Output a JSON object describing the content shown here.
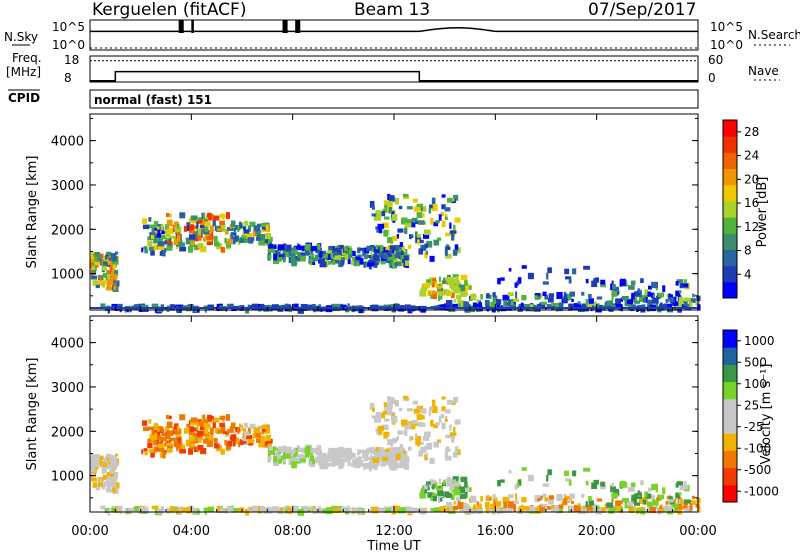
{
  "header": {
    "title": "Kerguelen (fitACF)",
    "beam": "Beam 13",
    "date": "07/Sep/2017"
  },
  "panels": {
    "nsky": {
      "label": "N.Sky",
      "ticks_left": [
        "10^5",
        "10^0"
      ],
      "ticks_right": [
        "10^5",
        "10^0"
      ],
      "right_label": "N.Search"
    },
    "freq": {
      "label_line1": "Freq.",
      "label_line2": "[MHz]",
      "ticks_left": [
        "18",
        "8"
      ],
      "ticks_right": [
        "60",
        "0"
      ],
      "right_label": "Nave"
    },
    "cpid": {
      "label": "CPID",
      "text": "normal (fast) 151"
    }
  },
  "colors": {
    "power": [
      "#0000ff",
      "#1e3cb4",
      "#2864a0",
      "#3c8c6e",
      "#50b43c",
      "#aad228",
      "#f0c800",
      "#f09600",
      "#f06400",
      "#f03200",
      "#ff0000"
    ],
    "velocity": [
      "#ff0000",
      "#f03c00",
      "#f07800",
      "#f0b400",
      "#c8c8c8",
      "#c8c8c8",
      "#78d228",
      "#3c9646",
      "#1e64a0",
      "#0000ff"
    ]
  },
  "chart_data": [
    {
      "type": "heatmap",
      "name": "power",
      "ylabel": "Slant Range [km]",
      "y_ticks": [
        "4000",
        "3000",
        "2000",
        "1000"
      ],
      "y_values": [
        4000,
        3000,
        2000,
        1000
      ],
      "ylim": [
        180,
        4600
      ],
      "xlim_hours": [
        0,
        24
      ],
      "colorbar_label": "Power [dB]",
      "colorbar_ticks": [
        "28",
        "24",
        "20",
        "16",
        "12",
        "8",
        "4"
      ],
      "colorbar_values": [
        28,
        24,
        20,
        16,
        12,
        8,
        4
      ],
      "colorbar_range": [
        0,
        30
      ]
    },
    {
      "type": "heatmap",
      "name": "velocity",
      "ylabel": "Slant Range [km]",
      "y_ticks": [
        "4000",
        "3000",
        "2000",
        "1000"
      ],
      "y_values": [
        4000,
        3000,
        2000,
        1000
      ],
      "ylim": [
        180,
        4600
      ],
      "xlim_hours": [
        0,
        24
      ],
      "xlabel": "Time UT",
      "x_ticks": [
        "00:00",
        "04:00",
        "08:00",
        "12:00",
        "16:00",
        "20:00",
        "00:00"
      ],
      "x_tick_hours": [
        0,
        4,
        8,
        12,
        16,
        20,
        24
      ],
      "colorbar_label": "Velocity [m s⁻¹]",
      "colorbar_ticks": [
        "1000",
        "500",
        "100",
        "25",
        "-25",
        "-100",
        "-500",
        "-1000"
      ]
    }
  ],
  "timeseries": {
    "nsky_segments_hours": [
      [
        0,
        1.0
      ],
      [
        1.0,
        13.5
      ],
      [
        13.5,
        24
      ]
    ],
    "freq_mhz_steps": [
      [
        0,
        1.0,
        8.5
      ],
      [
        1.0,
        13.0,
        12.0
      ],
      [
        13.0,
        24,
        8.5
      ]
    ],
    "nave_level": 49
  }
}
